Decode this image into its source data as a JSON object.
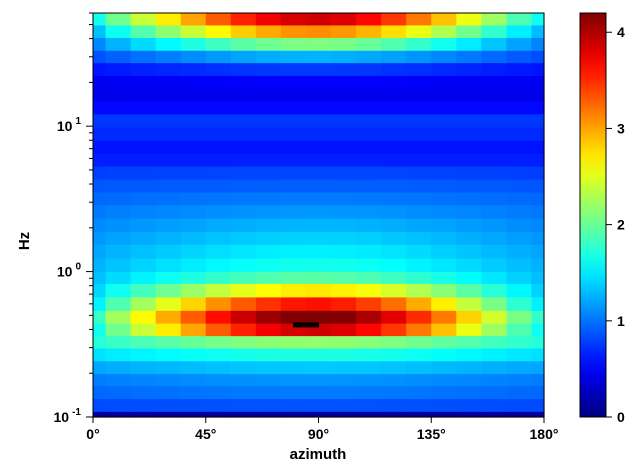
{
  "chart_data": {
    "type": "heatmap",
    "xlabel": "azimuth",
    "ylabel": "Hz",
    "x_scale": "linear",
    "y_scale": "log",
    "xlim": [
      0,
      180
    ],
    "ylim": [
      0.1,
      60
    ],
    "x_ticks": [
      0,
      45,
      90,
      135,
      180
    ],
    "x_tick_labels": [
      "0°",
      "45°",
      "90°",
      "135°",
      "180°"
    ],
    "y_ticks": [
      0.1,
      1,
      10
    ],
    "y_tick_labels": [
      {
        "base": "10",
        "exp": "-1"
      },
      {
        "base": "10",
        "exp": "0"
      },
      {
        "base": "10",
        "exp": "1"
      }
    ],
    "azimuth_deg": [
      0,
      10,
      20,
      30,
      40,
      50,
      60,
      70,
      80,
      90,
      100,
      110,
      120,
      130,
      140,
      150,
      160,
      170,
      180
    ],
    "frequency_hz": [
      0.1,
      0.12,
      0.15,
      0.18,
      0.22,
      0.27,
      0.33,
      0.4,
      0.49,
      0.6,
      0.75,
      0.92,
      1.1,
      1.4,
      1.7,
      2.1,
      2.6,
      3.2,
      3.9,
      4.8,
      5.9,
      7.2,
      8.9,
      11,
      13.5,
      16.5,
      20,
      25,
      30,
      37,
      45,
      55
    ],
    "band_profile": [
      0.1,
      0.85,
      1.0,
      1.1,
      1.3,
      1.6,
      2.0,
      3.0,
      3.3,
      2.8,
      2.2,
      1.7,
      1.5,
      1.4,
      1.3,
      1.2,
      1.1,
      1.0,
      0.9,
      0.8,
      0.65,
      0.6,
      0.7,
      0.75,
      0.55,
      0.45,
      0.5,
      0.7,
      1.1,
      1.7,
      2.4,
      3.0
    ],
    "azimuth_gain": [
      0.55,
      0.68,
      0.8,
      0.9,
      1.0,
      1.1,
      1.18,
      1.24,
      1.28,
      1.29,
      1.27,
      1.22,
      1.15,
      1.06,
      0.96,
      0.85,
      0.74,
      0.63,
      0.54
    ],
    "band_gain_weight": [
      0,
      0.05,
      0.1,
      0.12,
      0.15,
      0.2,
      0.3,
      1.0,
      1.0,
      1.0,
      0.8,
      0.5,
      0.35,
      0.3,
      0.25,
      0.2,
      0.15,
      0.1,
      0.05,
      0.05,
      0,
      0,
      0,
      0,
      0,
      0.05,
      0.1,
      0.3,
      0.5,
      0.8,
      1.0,
      1.0
    ],
    "peak_marker": {
      "azimuth": 85,
      "hz": 0.43
    },
    "colorbar": {
      "min": 0,
      "max": 4.2,
      "ticks": [
        0,
        1,
        2,
        3,
        4
      ],
      "tick_labels": [
        "0",
        "1",
        "2",
        "3",
        "4"
      ],
      "colormap": "jet"
    }
  }
}
